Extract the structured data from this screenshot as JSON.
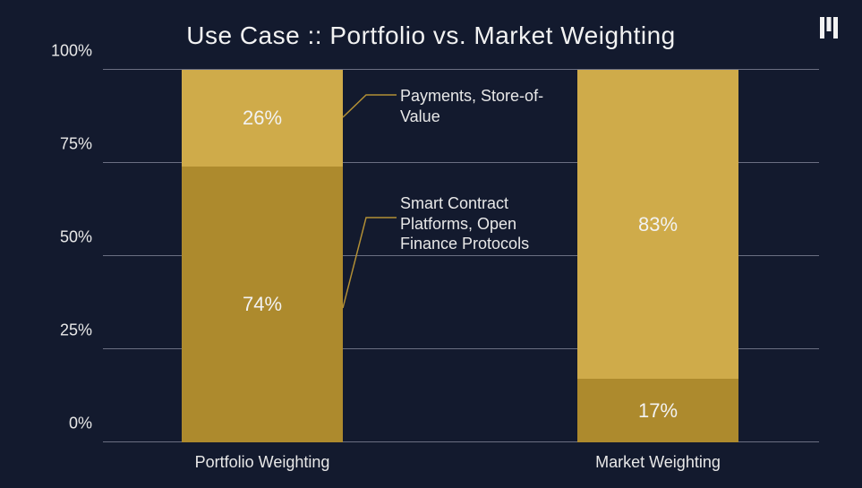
{
  "chart": {
    "type": "stacked-bar",
    "title": "Use Case :: Portfolio vs. Market Weighting",
    "title_fontsize": 28,
    "title_color": "#f2f2f2",
    "background_color": "#131a2e",
    "grid_color": "#6b6f82",
    "axis_text_color": "#e8e8e8",
    "axis_fontsize": 18,
    "value_label_fontsize": 22,
    "value_label_color": "#f2f2f2",
    "callout_fontsize": 18,
    "callout_color": "#e8e8e8",
    "leader_color": "#b28f35",
    "ylim": [
      0,
      100
    ],
    "yticks": [
      0,
      25,
      50,
      75,
      100
    ],
    "ytick_labels": [
      "0%",
      "25%",
      "50%",
      "75%",
      "100%"
    ],
    "categories": [
      {
        "key": "portfolio",
        "label": "Portfolio Weighting"
      },
      {
        "key": "market",
        "label": "Market Weighting"
      }
    ],
    "series": [
      {
        "key": "smart",
        "label": "Smart Contract Platforms, Open Finance Protocols",
        "color": "#ad8a2d"
      },
      {
        "key": "payments",
        "label": "Payments, Store-of-Value",
        "color": "#cfab4a"
      }
    ],
    "data": {
      "portfolio": {
        "smart": 74,
        "payments": 26
      },
      "market": {
        "smart": 17,
        "payments": 83
      }
    },
    "value_suffix": "%",
    "logo_color": "#f2f2f2"
  }
}
